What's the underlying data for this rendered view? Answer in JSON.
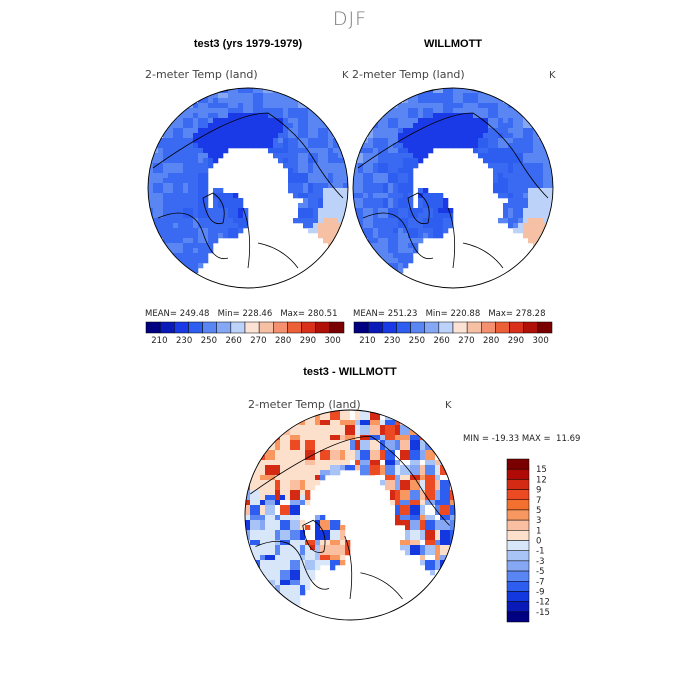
{
  "season": "DJF",
  "chart_data": [
    {
      "type": "heatmap",
      "title": "test3 (yrs 1979-1979)",
      "variable": "2-meter Temp (land)",
      "units": "K",
      "projection": "north-polar-stereographic",
      "stats": {
        "mean_label": "MEAN=",
        "mean": "249.48",
        "min_label": "Min=",
        "min": "228.46",
        "max_label": "Max=",
        "max": "280.51"
      },
      "colorbar": {
        "colors": [
          "#000080",
          "#0a1ab8",
          "#1a3ae8",
          "#2e5ef0",
          "#5a86f4",
          "#86a8f4",
          "#bcd2f8",
          "#fbe2d4",
          "#f6c0a4",
          "#f29070",
          "#ec6038",
          "#d8301a",
          "#b01008",
          "#7a0000"
        ],
        "tick_labels": [
          "210",
          "230",
          "250",
          "260",
          "270",
          "280",
          "290",
          "300"
        ]
      }
    },
    {
      "type": "heatmap",
      "title": "WILLMOTT",
      "variable": "2-meter Temp (land)",
      "units": "K",
      "projection": "north-polar-stereographic",
      "stats": {
        "mean_label": "MEAN=",
        "mean": "251.23",
        "min_label": "Min=",
        "min": "220.88",
        "max_label": "Max=",
        "max": "278.28"
      },
      "colorbar": {
        "colors": [
          "#000080",
          "#0a1ab8",
          "#1a3ae8",
          "#2e5ef0",
          "#5a86f4",
          "#86a8f4",
          "#bcd2f8",
          "#fbe2d4",
          "#f6c0a4",
          "#f29070",
          "#ec6038",
          "#d8301a",
          "#b01008",
          "#7a0000"
        ],
        "tick_labels": [
          "210",
          "230",
          "250",
          "260",
          "270",
          "280",
          "290",
          "300"
        ]
      }
    },
    {
      "type": "heatmap",
      "title": "test3 - WILLMOTT",
      "variable": "2-meter Temp (land)",
      "units": "K",
      "projection": "north-polar-stereographic",
      "stats": {
        "min_label": "MIN =",
        "min": "-19.33",
        "max_label": "MAX =",
        "max": "11.69"
      },
      "colorbar": {
        "colors": [
          "#7a0000",
          "#b00a06",
          "#d42a14",
          "#ec4a22",
          "#f4702e",
          "#f89860",
          "#fabea0",
          "#fce0cc",
          "#d8e6fa",
          "#a8c4f6",
          "#86a8f4",
          "#5a86f4",
          "#2e5ef0",
          "#1438e0",
          "#0a1ab8",
          "#000080"
        ],
        "tick_labels": [
          "15",
          "12",
          "9",
          "7",
          "5",
          "3",
          "1",
          "0",
          "-1",
          "-3",
          "-5",
          "-7",
          "-9",
          "-12",
          "-15"
        ]
      }
    }
  ]
}
